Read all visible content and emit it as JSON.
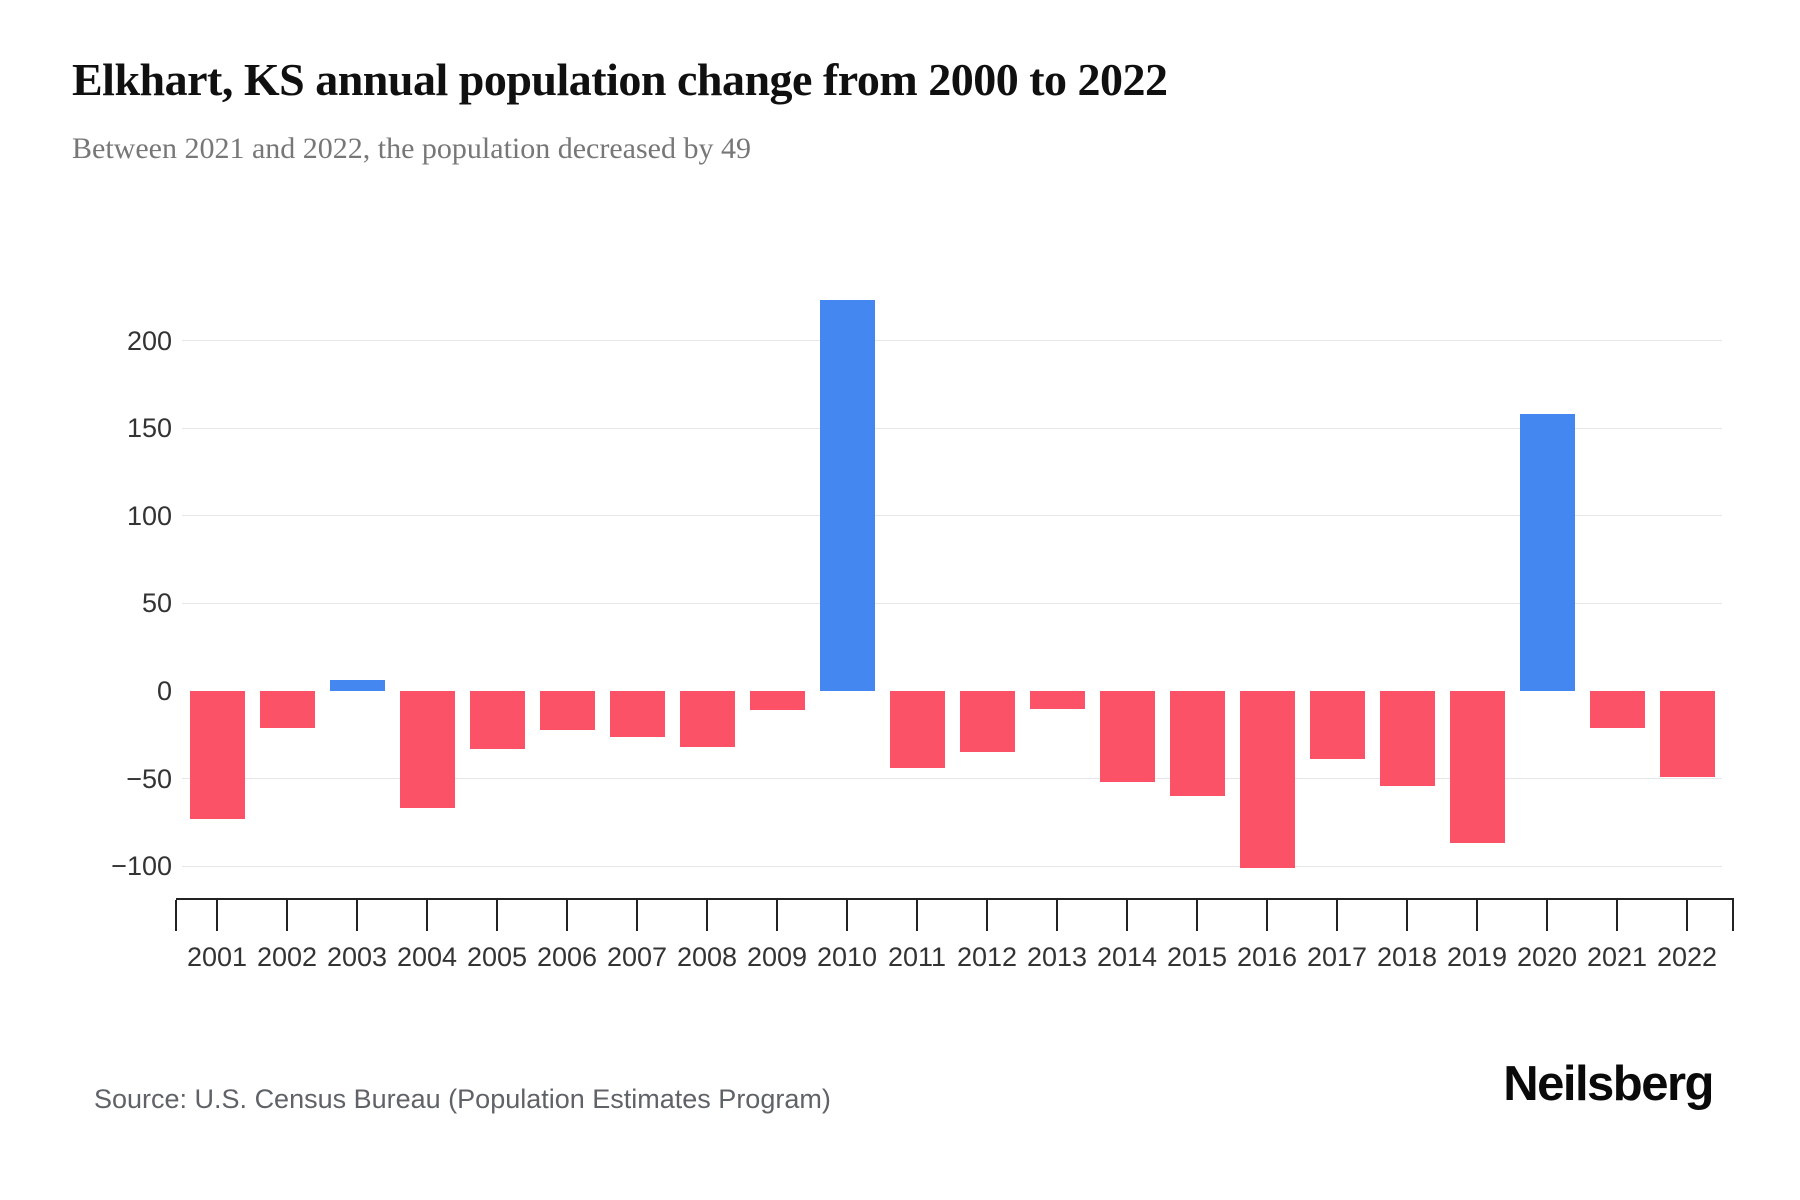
{
  "header": {
    "title": "Elkhart, KS annual population change from 2000 to 2022",
    "subtitle": "Between 2021 and 2022, the population decreased by 49"
  },
  "footer": {
    "source": "Source: U.S. Census Bureau (Population Estimates Program)",
    "brand": "Neilsberg"
  },
  "chart_data": {
    "type": "bar",
    "title": "Elkhart, KS annual population change from 2000 to 2022",
    "subtitle": "Between 2021 and 2022, the population decreased by 49",
    "categories": [
      "2001",
      "2002",
      "2003",
      "2004",
      "2005",
      "2006",
      "2007",
      "2008",
      "2009",
      "2010",
      "2011",
      "2012",
      "2013",
      "2014",
      "2015",
      "2016",
      "2017",
      "2018",
      "2019",
      "2020",
      "2021",
      "2022"
    ],
    "values": [
      -73,
      -21,
      6,
      -67,
      -33,
      -22,
      -26,
      -32,
      -11,
      223,
      -44,
      -35,
      -10,
      -52,
      -60,
      -101,
      -39,
      -54,
      -87,
      158,
      -21,
      -49
    ],
    "xlabel": "",
    "ylabel": "",
    "yticks": [
      200,
      150,
      100,
      50,
      0,
      -50,
      -100
    ],
    "ylim": [
      -120,
      235
    ],
    "grid": true,
    "legend": false,
    "colors": {
      "positive": "#4587f0",
      "negative": "#fb5268",
      "grid": "#e7e7e7",
      "axis": "#222222",
      "tick_label": "#333333"
    }
  }
}
